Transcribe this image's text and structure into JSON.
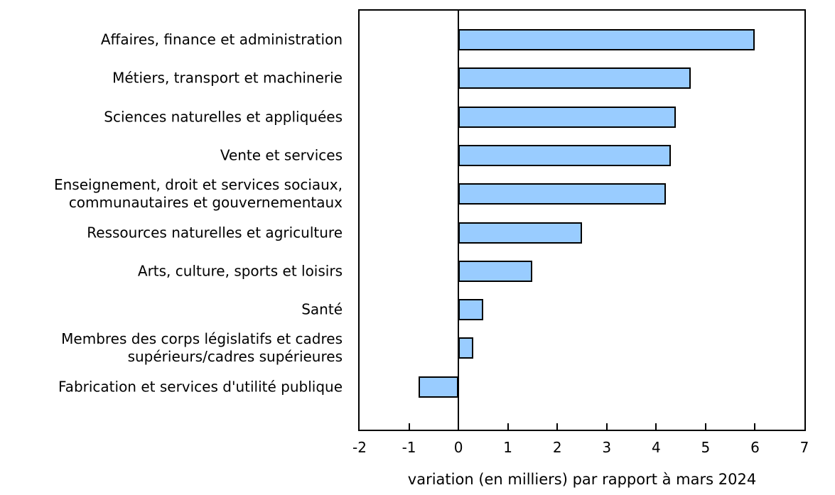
{
  "chart_data": {
    "type": "bar",
    "orientation": "horizontal",
    "title": "",
    "xlabel": "variation (en milliers) par rapport à mars 2024",
    "ylabel": "",
    "xlim": [
      -2,
      7
    ],
    "x_ticks": [
      -2,
      -1,
      0,
      1,
      2,
      3,
      4,
      5,
      6,
      7
    ],
    "grid": false,
    "legend": false,
    "categories": [
      "Affaires, finance et administration",
      "Métiers, transport et machinerie",
      "Sciences naturelles et appliquées",
      "Vente et services",
      "Enseignement, droit et services sociaux,\ncommunautaires et gouvernementaux",
      "Ressources naturelles et agriculture",
      "Arts, culture, sports et loisirs",
      "Santé",
      "Membres des corps législatifs et cadres\nsupérieurs/cadres supérieures",
      "Fabrication et services d'utilité publique"
    ],
    "values": [
      6.0,
      4.7,
      4.4,
      4.3,
      4.2,
      2.5,
      1.5,
      0.5,
      0.3,
      -0.8
    ],
    "colors": {
      "bar_fill": "#99CCFF",
      "bar_border": "#000000",
      "axis": "#000000",
      "text": "#000000",
      "background": "#FFFFFF"
    }
  }
}
